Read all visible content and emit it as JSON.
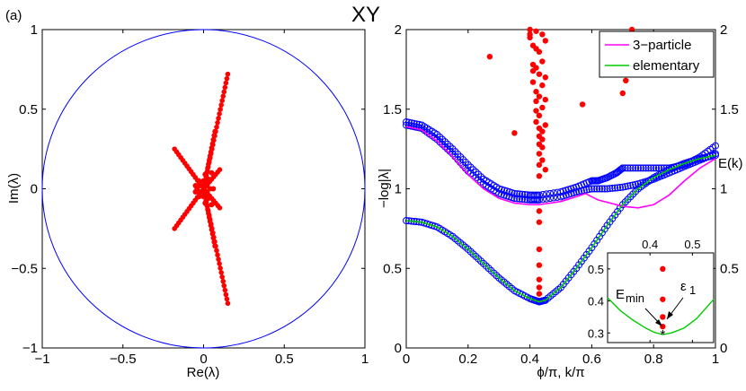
{
  "panel_label": "(a)",
  "title": "XY",
  "chart_data": [
    {
      "type": "scatter",
      "name": "eigenvalue-plane",
      "xlabel": "Re(λ)",
      "ylabel": "Im(λ)",
      "xlim": [
        -1,
        1
      ],
      "ylim": [
        -1,
        1
      ],
      "xticks": [
        -1,
        -0.5,
        0,
        0.5,
        1
      ],
      "yticks": [
        -1,
        -0.5,
        0,
        0.5,
        1
      ],
      "xtick_labels": [
        "−1",
        "−0.5",
        "0",
        "0.5",
        "1"
      ],
      "ytick_labels": [
        "−1",
        "−0.5",
        "0",
        "0.5",
        "1"
      ],
      "unit_circle": true,
      "colors": {
        "points": "#ff0000",
        "circle": "#0000ff"
      },
      "arms": [
        {
          "from": [
            0,
            0
          ],
          "to": [
            0.15,
            0.72
          ],
          "n": 26
        },
        {
          "from": [
            0,
            0
          ],
          "to": [
            0.15,
            -0.72
          ],
          "n": 26
        },
        {
          "from": [
            0,
            0
          ],
          "to": [
            -0.18,
            0.25
          ],
          "n": 14
        },
        {
          "from": [
            0,
            0
          ],
          "to": [
            -0.18,
            -0.25
          ],
          "n": 14
        },
        {
          "from": [
            0,
            0
          ],
          "to": [
            0.07,
            0.36
          ],
          "n": 14
        },
        {
          "from": [
            0,
            0
          ],
          "to": [
            0.07,
            -0.36
          ],
          "n": 14
        },
        {
          "from": [
            0,
            0
          ],
          "to": [
            0.1,
            0.12
          ],
          "n": 8
        },
        {
          "from": [
            0,
            0
          ],
          "to": [
            0.1,
            -0.12
          ],
          "n": 8
        }
      ],
      "core_points": [
        [
          0,
          0
        ],
        [
          0.02,
          0.02
        ],
        [
          -0.02,
          0.02
        ],
        [
          0.02,
          -0.02
        ],
        [
          -0.02,
          -0.02
        ],
        [
          0.04,
          0.0
        ],
        [
          -0.04,
          0.0
        ],
        [
          0.0,
          0.05
        ],
        [
          0.0,
          -0.05
        ],
        [
          0.03,
          0.06
        ],
        [
          0.03,
          -0.06
        ],
        [
          -0.03,
          0.05
        ],
        [
          -0.03,
          -0.05
        ],
        [
          0.05,
          0.1
        ],
        [
          0.05,
          -0.1
        ],
        [
          -0.05,
          0.02
        ],
        [
          -0.05,
          -0.02
        ],
        [
          0.06,
          0.0
        ],
        [
          0.01,
          0.09
        ],
        [
          0.01,
          -0.09
        ]
      ]
    },
    {
      "type": "line",
      "name": "spectrum",
      "xlabel": "ϕ/π, k/π",
      "ylabel_left": "−log|λ|",
      "ylabel_right": "E(k)",
      "xlim": [
        0,
        1
      ],
      "ylim": [
        0,
        2
      ],
      "xticks": [
        0,
        0.2,
        0.4,
        0.6,
        0.8,
        1
      ],
      "xtick_labels": [
        "0",
        "0.2",
        "0.4",
        "0.6",
        "0.8",
        "1"
      ],
      "yticks": [
        0,
        0.5,
        1,
        1.5,
        2
      ],
      "ytick_labels": [
        "0",
        "0.5",
        "1",
        "1.5",
        "2"
      ],
      "legend": [
        {
          "label": "3−particle",
          "color": "#ff00ff"
        },
        {
          "label": "elementary",
          "color": "#00cc00"
        }
      ],
      "legend_position": "top-right",
      "series": [
        {
          "name": "3-particle",
          "color": "#ff00ff",
          "x": [
            0,
            0.05,
            0.1,
            0.15,
            0.2,
            0.25,
            0.3,
            0.35,
            0.4,
            0.43,
            0.5,
            0.55,
            0.58,
            0.62,
            0.7,
            0.75,
            0.8,
            0.85,
            0.9,
            0.95,
            1.0
          ],
          "y": [
            1.39,
            1.37,
            1.3,
            1.2,
            1.09,
            1.0,
            0.94,
            0.91,
            0.9,
            0.9,
            0.92,
            0.95,
            0.97,
            0.93,
            0.89,
            0.88,
            0.9,
            0.96,
            1.05,
            1.13,
            1.19
          ]
        },
        {
          "name": "elementary",
          "color": "#00cc00",
          "x": [
            0,
            0.05,
            0.1,
            0.15,
            0.2,
            0.25,
            0.3,
            0.35,
            0.4,
            0.43,
            0.45,
            0.5,
            0.55,
            0.6,
            0.65,
            0.7,
            0.75,
            0.8,
            0.85,
            0.9,
            0.95,
            1.0
          ],
          "y": [
            0.8,
            0.79,
            0.76,
            0.7,
            0.62,
            0.53,
            0.44,
            0.36,
            0.31,
            0.29,
            0.3,
            0.38,
            0.5,
            0.63,
            0.77,
            0.9,
            1.0,
            1.07,
            1.12,
            1.16,
            1.19,
            1.21
          ]
        }
      ],
      "circle_series": [
        {
          "name": "low-band",
          "color": "#0000ff",
          "x": [
            0,
            0.05,
            0.1,
            0.15,
            0.2,
            0.25,
            0.3,
            0.35,
            0.4,
            0.43,
            0.45,
            0.5,
            0.55,
            0.6,
            0.65,
            0.7,
            0.75,
            0.8,
            0.85,
            0.9,
            0.95,
            1.0
          ],
          "y": [
            0.8,
            0.79,
            0.76,
            0.7,
            0.62,
            0.53,
            0.44,
            0.36,
            0.31,
            0.29,
            0.3,
            0.38,
            0.5,
            0.63,
            0.77,
            0.9,
            1.0,
            1.07,
            1.12,
            1.16,
            1.19,
            1.21
          ]
        },
        {
          "name": "upper-band-1",
          "color": "#0000ff",
          "x": [
            0,
            0.05,
            0.1,
            0.15,
            0.2,
            0.25,
            0.3,
            0.35,
            0.4,
            0.43,
            0.5,
            0.55,
            0.6,
            0.62,
            0.65,
            0.68,
            0.7,
            0.75,
            0.8,
            0.85,
            0.9,
            0.95,
            1.0
          ],
          "y": [
            1.42,
            1.4,
            1.34,
            1.25,
            1.15,
            1.06,
            1.0,
            0.97,
            0.96,
            0.96,
            0.98,
            1.01,
            1.05,
            1.05,
            1.07,
            1.1,
            1.13,
            1.13,
            1.13,
            1.13,
            1.15,
            1.2,
            1.27
          ]
        },
        {
          "name": "upper-band-2",
          "color": "#0000ff",
          "x": [
            0,
            0.05,
            0.1,
            0.15,
            0.2,
            0.25,
            0.3,
            0.35,
            0.4,
            0.43,
            0.5,
            0.55,
            0.6,
            0.65,
            0.7,
            0.75,
            0.8,
            0.85,
            0.9,
            0.95,
            1.0
          ],
          "y": [
            1.4,
            1.38,
            1.31,
            1.22,
            1.11,
            1.03,
            0.97,
            0.94,
            0.93,
            0.93,
            0.95,
            0.98,
            1.0,
            1.0,
            1.01,
            1.03,
            1.06,
            1.1,
            1.14,
            1.18,
            1.22
          ]
        }
      ],
      "dots": {
        "color": "#ff0000",
        "points": [
          [
            0.27,
            1.83
          ],
          [
            0.35,
            1.35
          ],
          [
            0.4,
            2.0
          ],
          [
            0.4,
            1.97
          ],
          [
            0.4,
            1.95
          ],
          [
            0.41,
            1.9
          ],
          [
            0.41,
            1.78
          ],
          [
            0.41,
            1.74
          ],
          [
            0.41,
            1.67
          ],
          [
            0.42,
            1.99
          ],
          [
            0.42,
            1.88
          ],
          [
            0.42,
            1.76
          ],
          [
            0.42,
            1.61
          ],
          [
            0.42,
            1.55
          ],
          [
            0.42,
            1.49
          ],
          [
            0.42,
            1.42
          ],
          [
            0.43,
            1.86
          ],
          [
            0.43,
            1.72
          ],
          [
            0.43,
            1.58
          ],
          [
            0.43,
            1.46
          ],
          [
            0.43,
            1.38
          ],
          [
            0.43,
            1.33
          ],
          [
            0.43,
            1.28
          ],
          [
            0.43,
            1.22
          ],
          [
            0.43,
            1.15
          ],
          [
            0.43,
            1.08
          ],
          [
            0.43,
            0.86
          ],
          [
            0.43,
            0.79
          ],
          [
            0.43,
            0.62
          ],
          [
            0.43,
            0.52
          ],
          [
            0.43,
            0.43
          ],
          [
            0.43,
            0.38
          ],
          [
            0.43,
            0.34
          ],
          [
            0.44,
            1.97
          ],
          [
            0.44,
            1.8
          ],
          [
            0.44,
            1.65
          ],
          [
            0.44,
            1.51
          ],
          [
            0.44,
            1.36
          ],
          [
            0.44,
            1.31
          ],
          [
            0.44,
            1.26
          ],
          [
            0.44,
            1.18
          ],
          [
            0.45,
            1.93
          ],
          [
            0.45,
            1.7
          ],
          [
            0.45,
            1.56
          ],
          [
            0.45,
            1.4
          ],
          [
            0.45,
            1.12
          ],
          [
            0.57,
            1.53
          ],
          [
            0.7,
            1.6
          ],
          [
            0.71,
            1.68
          ],
          [
            0.72,
            1.72
          ],
          [
            0.72,
            1.8
          ],
          [
            0.73,
            2.0
          ]
        ]
      }
    },
    {
      "type": "line",
      "name": "inset",
      "xlim": [
        0.3,
        0.55
      ],
      "ylim": [
        0.27,
        0.55
      ],
      "xticks": [
        0.4,
        0.5
      ],
      "xtick_labels": [
        "0.4",
        "0.5"
      ],
      "yticks": [
        0.3,
        0.4,
        0.5
      ],
      "ytick_labels": [
        "0.3",
        "0.4",
        "0.5"
      ],
      "curve": {
        "color": "#00cc00",
        "x": [
          0.3,
          0.33,
          0.36,
          0.39,
          0.41,
          0.43,
          0.45,
          0.48,
          0.51,
          0.55
        ],
        "y": [
          0.41,
          0.37,
          0.34,
          0.315,
          0.302,
          0.295,
          0.3,
          0.315,
          0.345,
          0.405
        ]
      },
      "dots": [
        [
          0.43,
          0.5
        ],
        [
          0.43,
          0.405
        ],
        [
          0.43,
          0.35
        ],
        [
          0.43,
          0.32
        ]
      ],
      "star": [
        0.43,
        0.295
      ],
      "annotations": [
        {
          "text_main": "E",
          "text_sub": "min",
          "target": [
            0.43,
            0.295
          ]
        },
        {
          "text_main": "ε",
          "text_sub": "1",
          "target": [
            0.43,
            0.32
          ]
        }
      ]
    }
  ]
}
